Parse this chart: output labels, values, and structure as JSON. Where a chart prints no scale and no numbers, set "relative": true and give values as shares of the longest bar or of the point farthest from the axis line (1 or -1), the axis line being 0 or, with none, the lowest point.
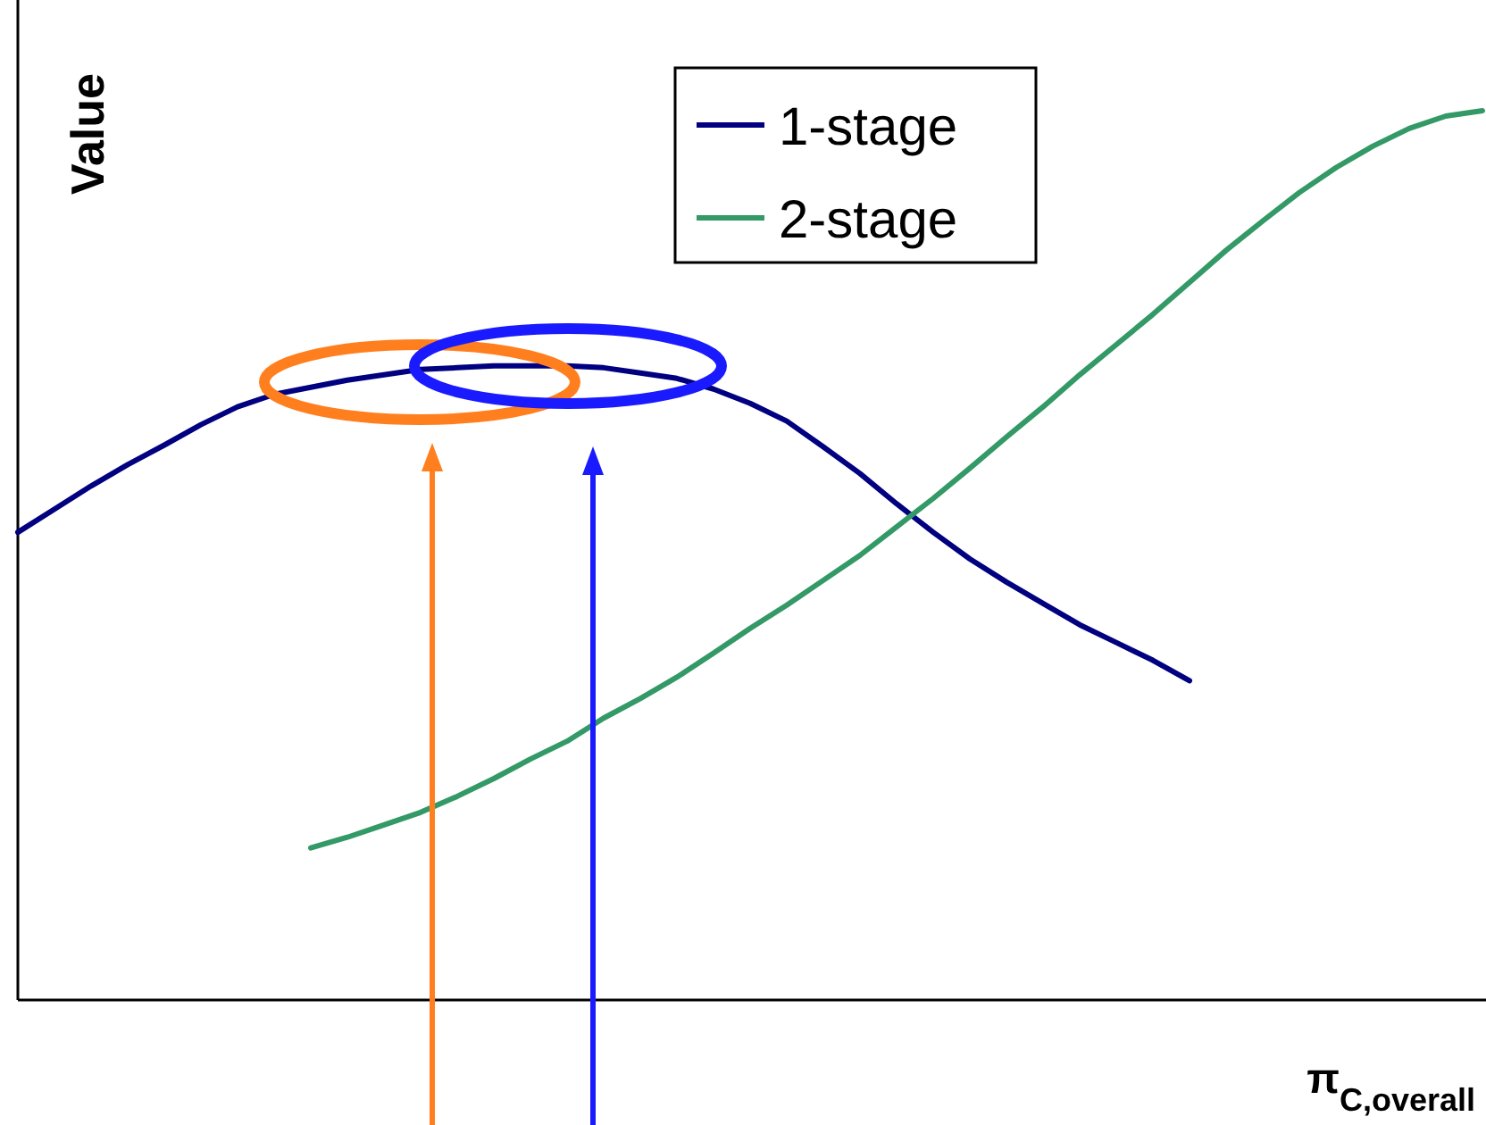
{
  "chart_data": {
    "type": "line",
    "relative": true,
    "xlabel": "π$_{C,overall}$",
    "ylabel": "Value",
    "legend": "top",
    "marker": "none",
    "line_style": "solid",
    "grid": false,
    "categories": [
      null,
      null,
      null,
      null,
      null,
      null,
      null,
      null,
      null,
      null,
      null,
      null,
      null,
      null,
      null,
      null,
      null,
      null,
      null,
      null,
      null,
      null,
      null,
      null,
      null,
      null,
      null,
      null,
      null,
      null,
      null,
      null,
      null,
      null,
      null,
      null,
      null,
      null,
      null,
      null,
      null
    ],
    "series": [
      {
        "name": "1-stage",
        "color": "#000080",
        "values": [
          0.526,
          0.552,
          0.578,
          0.602,
          0.624,
          0.647,
          0.667,
          0.681,
          0.689,
          0.697,
          0.703,
          0.709,
          0.711,
          0.713,
          0.713,
          0.713,
          0.711,
          0.705,
          0.699,
          0.687,
          0.671,
          0.651,
          0.622,
          0.592,
          0.558,
          0.526,
          0.496,
          0.47,
          0.446,
          0.422,
          0.402,
          0.382,
          0.359,
          null,
          null,
          null,
          null,
          null,
          null,
          null,
          null
        ]
      },
      {
        "name": "2-stage",
        "color": "#339966",
        "values": [
          null,
          null,
          null,
          null,
          null,
          null,
          null,
          null,
          0.171,
          0.183,
          0.197,
          0.211,
          0.229,
          0.249,
          0.271,
          0.291,
          0.317,
          0.339,
          0.363,
          0.39,
          0.418,
          0.444,
          0.472,
          0.5,
          0.532,
          0.564,
          0.598,
          0.633,
          0.667,
          0.703,
          0.737,
          0.771,
          0.807,
          0.843,
          0.876,
          0.908,
          0.936,
          0.96,
          0.98,
          0.994,
          1
        ]
      }
    ]
  }
}
